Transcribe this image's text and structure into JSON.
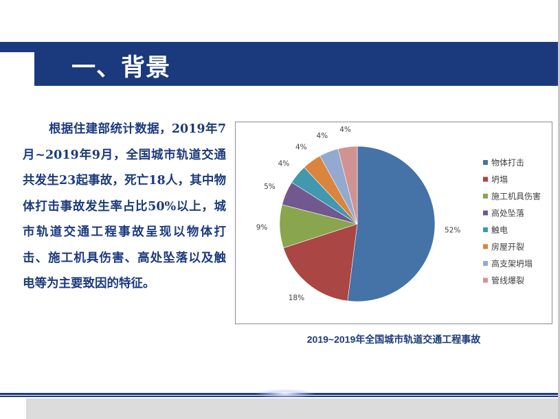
{
  "slide": {
    "title": "一、背景",
    "body": "根据住建部统计数据，2019年7月~2019年9月，全国城市轨道交通共发生23起事故，死亡18人，其中物体打击事故发生率占比50%以上，城市轨道交通工程事故呈现以物体打击、施工机具伤害、高处坠落以及触电等为主要致因的特征。"
  },
  "chart_data": {
    "type": "pie",
    "title": "2019~2019年全国城市轨道交通工程事故",
    "legend_position": "right",
    "categories": [
      "物体打击",
      "坍塌",
      "施工机具伤害",
      "高处坠落",
      "触电",
      "房屋开裂",
      "高支架坍塌",
      "管线爆裂"
    ],
    "values": [
      52,
      18,
      9,
      5,
      4,
      4,
      4,
      4
    ],
    "labels": [
      "52%",
      "18%",
      "9%",
      "5%",
      "4%",
      "4%",
      "4%",
      "4%"
    ],
    "colors": [
      "#4572a7",
      "#aa4643",
      "#89a54e",
      "#71588f",
      "#4198af",
      "#db843d",
      "#93a9cf",
      "#d19392"
    ]
  }
}
